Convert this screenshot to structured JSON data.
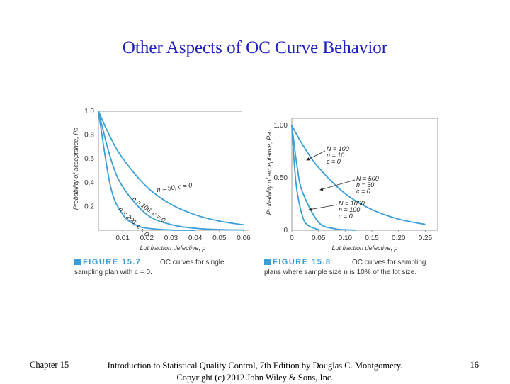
{
  "slide": {
    "title": "Other Aspects of OC Curve Behavior",
    "footer_left": "Chapter 15",
    "footer_center_line1": "Introduction to Statistical Quality Control, 7th Edition by Douglas C. Montgomery.",
    "footer_center_line2": "Copyright (c) 2012  John Wiley & Sons, Inc.",
    "footer_right": "16"
  },
  "colors": {
    "curve": "#3a9fd8",
    "figure_label": "#3a9fd8",
    "title": "#2020c0"
  },
  "chart_data": [
    {
      "type": "line",
      "xlabel": "Lot fraction defective, p",
      "ylabel": "Probability of acceptance, Pa",
      "xlim": [
        0,
        0.06
      ],
      "ylim": [
        0,
        1.0
      ],
      "x_ticks": [
        "0.01",
        "0.02",
        "0.03",
        "0.04",
        "0.05",
        "0.06"
      ],
      "y_ticks": [
        "1.0",
        "0.8",
        "0.6",
        "0.4",
        "0.2"
      ],
      "series": [
        {
          "name": "n = 50, c = 0",
          "x": [
            0,
            0.005,
            0.01,
            0.02,
            0.03,
            0.04,
            0.05,
            0.06
          ],
          "values": [
            1.0,
            0.778,
            0.605,
            0.364,
            0.218,
            0.13,
            0.077,
            0.045
          ]
        },
        {
          "name": "n = 100, c = 0",
          "x": [
            0,
            0.005,
            0.01,
            0.02,
            0.03,
            0.04,
            0.05,
            0.06
          ],
          "values": [
            1.0,
            0.606,
            0.366,
            0.133,
            0.048,
            0.017,
            0.006,
            0.002
          ]
        },
        {
          "name": "n = 200, c = 0",
          "x": [
            0,
            0.005,
            0.01,
            0.015,
            0.02,
            0.03,
            0.04
          ],
          "values": [
            1.0,
            0.367,
            0.134,
            0.049,
            0.018,
            0.002,
            0.0
          ]
        }
      ],
      "curve_labels": [
        {
          "n": "n = 50, c = 0"
        },
        {
          "n": "n = 100, c = 0"
        },
        {
          "n": "n = 200, c = 0"
        }
      ],
      "figure_label": "FIGURE 15.7",
      "caption_line1": "OC curves for single",
      "caption_line2": "sampling plan with c = 0."
    },
    {
      "type": "line",
      "xlabel": "Lot fraction defective, p",
      "ylabel": "Probability of acceptance, Pa",
      "xlim": [
        0,
        0.26
      ],
      "ylim": [
        0,
        1.0
      ],
      "x_ticks": [
        "0",
        "0.05",
        "0.10",
        "0.15",
        "0.20",
        "0.25"
      ],
      "y_ticks": [
        "1.00",
        "0.50",
        "0"
      ],
      "series": [
        {
          "name": "N = 100, n = 10, c = 0",
          "x": [
            0,
            0.02,
            0.05,
            0.1,
            0.15,
            0.2,
            0.25
          ],
          "values": [
            1.0,
            0.817,
            0.599,
            0.349,
            0.197,
            0.107,
            0.056
          ]
        },
        {
          "name": "N = 500, n = 50, c = 0",
          "x": [
            0,
            0.01,
            0.02,
            0.05,
            0.08,
            0.1,
            0.12
          ],
          "values": [
            1.0,
            0.605,
            0.364,
            0.077,
            0.015,
            0.005,
            0.001
          ]
        },
        {
          "name": "N = 1000, n = 100, c = 0",
          "x": [
            0,
            0.005,
            0.01,
            0.02,
            0.03,
            0.05
          ],
          "values": [
            1.0,
            0.606,
            0.366,
            0.133,
            0.048,
            0.006
          ]
        }
      ],
      "legend_blocks": [
        {
          "l1": "N = 100",
          "l2": "n = 10",
          "l3": "c = 0"
        },
        {
          "l1": "N = 500",
          "l2": "n = 50",
          "l3": "c = 0"
        },
        {
          "l1": "N = 1000",
          "l2": "n = 100",
          "l3": "c = 0"
        }
      ],
      "figure_label": "FIGURE 15.8",
      "caption_line1": "OC curves for sampling",
      "caption_line2": "plans where sample size n is 10% of the lot size."
    }
  ]
}
